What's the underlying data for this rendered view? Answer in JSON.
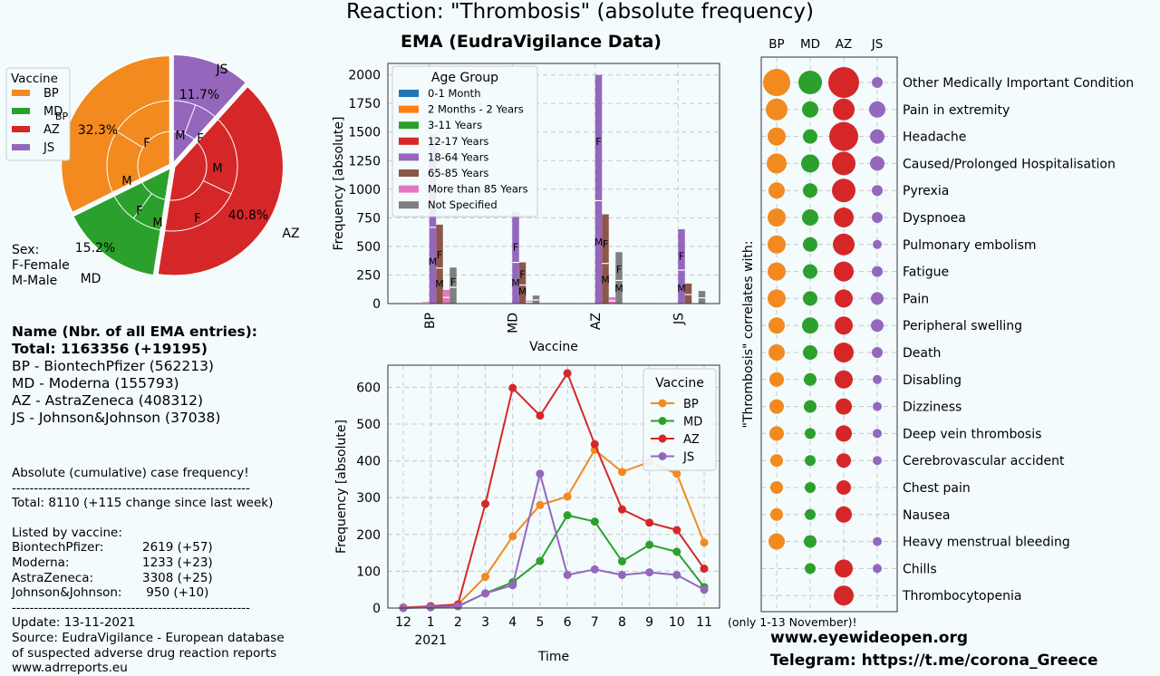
{
  "title": "Reaction: \"Thrombosis\" (absolute frequency)",
  "colors": {
    "BP": "#f28a1f",
    "MD": "#2ca02c",
    "AZ": "#d62728",
    "JS": "#9467bd",
    "age": [
      "#1f77b4",
      "#ff7f0e",
      "#2ca02c",
      "#d62728",
      "#9467bd",
      "#8c564b",
      "#e377c2",
      "#7f7f7f"
    ]
  },
  "pie": {
    "legend_title": "Vaccine",
    "legend": [
      "BP",
      "MD",
      "AZ",
      "JS"
    ],
    "outer": [
      {
        "label": "BP",
        "pct": "32.3%",
        "value": 32.3
      },
      {
        "label": "MD",
        "pct": "15.2%",
        "value": 15.2
      },
      {
        "label": "AZ",
        "pct": "40.8%",
        "value": 40.8
      },
      {
        "label": "JS",
        "pct": "11.7%",
        "value": 11.7
      }
    ],
    "inner_labels": [
      "F",
      "M",
      "F",
      "M",
      "F",
      "M",
      "M",
      "F"
    ],
    "stray_label": "BP",
    "sex_note": [
      "Sex:",
      "F-Female",
      "M-Male"
    ]
  },
  "info": {
    "heading": "Name  (Nbr. of all EMA entries):",
    "total": "Total: 1163356 (+19195)",
    "lines": [
      "BP - BiontechPfizer (562213)",
      "MD - Moderna (155793)",
      "AZ - AstraZeneca (408312)",
      "JS - Johnson&Johnson (37038)"
    ]
  },
  "stats": {
    "title": "Absolute (cumulative) case frequency!",
    "divider": "------------------------------------------------------",
    "total": "Total: 8110 (+115 change since last week)",
    "listed_by": "Listed by vaccine:",
    "rows": [
      [
        "BiontechPfizer:",
        "2619 (+57)"
      ],
      [
        "Moderna:",
        "1233 (+23)"
      ],
      [
        "AstraZeneca:",
        "3308 (+25)"
      ],
      [
        "Johnson&Johnson:",
        " 950 (+10)"
      ]
    ],
    "update": "Update: 13-11-2021",
    "source": [
      "Source: EudraVigilance - European database",
      "of suspected adverse drug reaction reports",
      "www.adrreports.eu"
    ]
  },
  "chart_data": [
    {
      "type": "bar",
      "title": "EMA (EudraVigilance Data)",
      "xlabel": "Vaccine",
      "ylabel": "Frequency [absolute]",
      "ylim": [
        0,
        2100
      ],
      "yticks": [
        0,
        250,
        500,
        750,
        1000,
        1250,
        1500,
        1750,
        2000
      ],
      "categories": [
        "BP",
        "MD",
        "AZ",
        "JS"
      ],
      "legend_title": "Age Group",
      "series": [
        {
          "name": "0-1 Month",
          "values": [
            0,
            0,
            0,
            0
          ]
        },
        {
          "name": "2 Months - 2 Years",
          "values": [
            2,
            2,
            3,
            1
          ]
        },
        {
          "name": "3-11 Years",
          "values": [
            3,
            2,
            2,
            1
          ]
        },
        {
          "name": "12-17 Years",
          "values": [
            15,
            8,
            5,
            2
          ]
        },
        {
          "name": "18-64 Years",
          "values": [
            1480,
            800,
            2000,
            650
          ]
        },
        {
          "name": "65-85 Years",
          "values": [
            690,
            360,
            780,
            175
          ]
        },
        {
          "name": "More than 85 Years",
          "values": [
            120,
            25,
            55,
            8
          ]
        },
        {
          "name": "Not Specified",
          "values": [
            315,
            70,
            450,
            110
          ]
        }
      ],
      "bar_labels": [
        {
          "series": 4,
          "cat": 0,
          "text": "M",
          "frac": 0.25
        },
        {
          "series": 4,
          "cat": 0,
          "text": "F",
          "frac": 0.57
        },
        {
          "series": 5,
          "cat": 0,
          "text": "M",
          "frac": 0.25
        },
        {
          "series": 5,
          "cat": 0,
          "text": "F",
          "frac": 0.62
        },
        {
          "series": 7,
          "cat": 0,
          "text": "F",
          "frac": 0.6
        },
        {
          "series": 4,
          "cat": 1,
          "text": "M",
          "frac": 0.23
        },
        {
          "series": 4,
          "cat": 1,
          "text": "F",
          "frac": 0.62
        },
        {
          "series": 5,
          "cat": 1,
          "text": "M",
          "frac": 0.3
        },
        {
          "series": 5,
          "cat": 1,
          "text": "F",
          "frac": 0.72
        },
        {
          "series": 4,
          "cat": 2,
          "text": "M",
          "frac": 0.27
        },
        {
          "series": 4,
          "cat": 2,
          "text": "F",
          "frac": 0.71
        },
        {
          "series": 5,
          "cat": 2,
          "text": "M",
          "frac": 0.27
        },
        {
          "series": 5,
          "cat": 2,
          "text": "F",
          "frac": 0.67
        },
        {
          "series": 7,
          "cat": 2,
          "text": "M",
          "frac": 0.3
        },
        {
          "series": 7,
          "cat": 2,
          "text": "F",
          "frac": 0.67
        },
        {
          "series": 4,
          "cat": 3,
          "text": "M",
          "frac": 0.21
        },
        {
          "series": 4,
          "cat": 3,
          "text": "F",
          "frac": 0.64
        }
      ]
    },
    {
      "type": "line",
      "xlabel": "Time",
      "ylabel": "Frequency [absolute]",
      "ylim": [
        0,
        660
      ],
      "yticks": [
        0,
        100,
        200,
        300,
        400,
        500,
        600
      ],
      "categories": [
        "12",
        "1",
        "2",
        "3",
        "4",
        "5",
        "6",
        "7",
        "8",
        "9",
        "10",
        "11"
      ],
      "year_label": "2021",
      "legend_title": "Vaccine",
      "series": [
        {
          "name": "BP",
          "values": [
            2,
            5,
            10,
            85,
            195,
            280,
            303,
            430,
            370,
            397,
            365,
            178
          ]
        },
        {
          "name": "MD",
          "values": [
            0,
            3,
            5,
            40,
            70,
            128,
            252,
            235,
            127,
            172,
            153,
            57
          ]
        },
        {
          "name": "AZ",
          "values": [
            0,
            5,
            10,
            283,
            598,
            523,
            638,
            445,
            268,
            232,
            212,
            107
          ]
        },
        {
          "name": "JS",
          "values": [
            0,
            2,
            5,
            40,
            62,
            365,
            90,
            105,
            90,
            97,
            90,
            50
          ]
        }
      ]
    },
    {
      "type": "scatter",
      "ylabel": "\"Thrombosis\" correlates with:",
      "columns": [
        "BP",
        "MD",
        "AZ",
        "JS"
      ],
      "rows": [
        "Other Medically Important Condition",
        "Pain in extremity",
        "Headache",
        "Caused/Prolonged Hospitalisation",
        "Pyrexia",
        "Dyspnoea",
        "Pulmonary embolism",
        "Fatigue",
        "Pain",
        "Peripheral swelling",
        "Death",
        "Disabling",
        "Dizziness",
        "Deep vein thrombosis",
        "Cerebrovascular accident",
        "Chest pain",
        "Nausea",
        "Heavy menstrual bleeding",
        "Chills",
        "Thrombocytopenia"
      ],
      "sizes": [
        [
          15,
          13,
          17,
          6
        ],
        [
          12,
          9,
          12,
          9
        ],
        [
          10,
          8,
          16,
          8
        ],
        [
          11,
          10,
          13,
          8
        ],
        [
          9,
          8,
          13,
          6
        ],
        [
          10,
          9,
          11,
          6
        ],
        [
          10,
          8,
          12,
          5
        ],
        [
          10,
          8,
          11,
          6
        ],
        [
          10,
          8,
          10,
          7
        ],
        [
          9,
          9,
          10,
          7
        ],
        [
          9,
          8,
          11,
          6
        ],
        [
          8,
          7,
          10,
          5
        ],
        [
          8,
          7,
          9,
          5
        ],
        [
          8,
          6,
          9,
          5
        ],
        [
          7,
          6,
          8,
          5
        ],
        [
          7,
          6,
          8,
          0
        ],
        [
          7,
          6,
          9,
          0
        ],
        [
          9,
          7,
          0,
          5
        ],
        [
          0,
          6,
          10,
          5
        ],
        [
          0,
          0,
          11,
          0
        ]
      ],
      "note": "(only 1-13 November)!"
    }
  ],
  "footer": {
    "site": "www.eyewideopen.org",
    "telegram": "Telegram: https://t.me/corona_Greece"
  }
}
